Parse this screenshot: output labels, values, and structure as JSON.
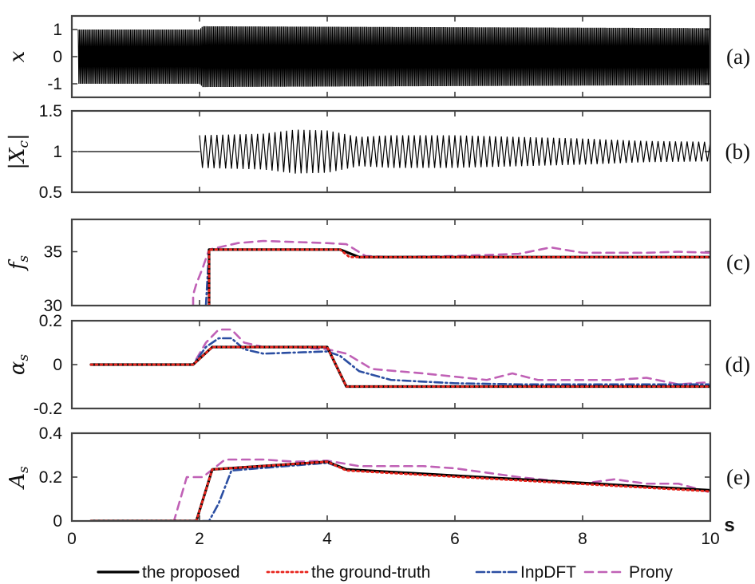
{
  "chart_data": {
    "type": "line",
    "x_unit_label": "s",
    "xlim": [
      0,
      10
    ],
    "x_ticks": [
      "0",
      "2",
      "4",
      "6",
      "8",
      "10"
    ],
    "legend": {
      "placement": "bottom",
      "entries": [
        {
          "name": "the proposed",
          "color": "#000000",
          "style": "solid"
        },
        {
          "name": "the ground-truth",
          "color": "#e8241c",
          "style": "dotted"
        },
        {
          "name": "InpDFT",
          "color": "#2b4ea2",
          "style": "dashdot"
        },
        {
          "name": "Prony",
          "color": "#c061b6",
          "style": "dashed"
        }
      ]
    },
    "panels": [
      {
        "id": "a",
        "panel_label": "(a)",
        "ylabel": "x",
        "ylim": [
          -1.5,
          1.5
        ],
        "y_ticks": [
          1,
          0,
          -1
        ],
        "y_tick_labels": [
          "1",
          "0",
          "-1"
        ],
        "series": [
          {
            "name": "x",
            "type": "oscillation",
            "color": "#000000",
            "envelope": [
              [
                0.1,
                1.0
              ],
              [
                2.0,
                1.0
              ],
              [
                2.05,
                1.12
              ],
              [
                10.0,
                1.05
              ]
            ],
            "cycles_per_second": 50
          }
        ]
      },
      {
        "id": "b",
        "panel_label": "(b)",
        "ylabel": "|Xc|",
        "ylim": [
          0.5,
          1.5
        ],
        "y_ticks": [
          1.5,
          1,
          0.5
        ],
        "y_tick_labels": [
          "1.5",
          "1",
          "0.5"
        ],
        "series": [
          {
            "name": "|Xc|",
            "type": "line",
            "color": "#000000",
            "x": [
              0.1,
              2.0
            ],
            "y": [
              1.0,
              1.0
            ]
          },
          {
            "name": "|Xc| oscillation",
            "type": "oscillation",
            "color": "#000000",
            "center": 1.0,
            "start": 2.0,
            "end": 10.0,
            "cycles_per_second": 11,
            "envelope": [
              [
                2.0,
                0.2
              ],
              [
                3.0,
                0.22
              ],
              [
                3.5,
                0.27
              ],
              [
                4.0,
                0.26
              ],
              [
                4.5,
                0.18
              ],
              [
                5.0,
                0.2
              ],
              [
                6.0,
                0.2
              ],
              [
                7.0,
                0.18
              ],
              [
                8.0,
                0.16
              ],
              [
                9.0,
                0.13
              ],
              [
                10.0,
                0.12
              ]
            ]
          }
        ]
      },
      {
        "id": "c",
        "panel_label": "(c)",
        "ylabel": "fs",
        "ylim": [
          30,
          38
        ],
        "y_ticks": [
          35,
          30
        ],
        "y_tick_labels": [
          "35",
          "30"
        ],
        "series": [
          {
            "name": "the proposed",
            "x": [
              2.15,
              2.15,
              4.2,
              4.5,
              10.0
            ],
            "y": [
              30,
              35.2,
              35.2,
              34.5,
              34.5
            ]
          },
          {
            "name": "the ground-truth",
            "x": [
              2.15,
              2.15,
              4.2,
              4.35,
              10.0
            ],
            "y": [
              30,
              35.2,
              35.2,
              34.5,
              34.5
            ]
          },
          {
            "name": "InpDFT",
            "x": [
              2.1,
              2.15,
              4.2,
              4.5,
              10.0
            ],
            "y": [
              30,
              35.2,
              35.2,
              34.5,
              34.5
            ]
          },
          {
            "name": "Prony",
            "x": [
              1.9,
              1.9,
              1.95,
              2.05,
              2.15,
              2.6,
              3.0,
              3.5,
              4.0,
              4.3,
              4.6,
              5.0,
              6.0,
              7.0,
              7.5,
              8.0,
              9.0,
              9.5,
              10.0
            ],
            "y": [
              30,
              31.0,
              32.0,
              33.5,
              35.2,
              35.8,
              36.0,
              35.9,
              35.8,
              35.7,
              34.6,
              34.5,
              34.6,
              34.8,
              35.4,
              34.9,
              34.9,
              35.0,
              34.9
            ]
          }
        ]
      },
      {
        "id": "d",
        "panel_label": "(d)",
        "ylabel": "αs",
        "ylim": [
          -0.2,
          0.2
        ],
        "y_ticks": [
          0.2,
          0,
          -0.2
        ],
        "y_tick_labels": [
          "0.2",
          "0",
          "-0.2"
        ],
        "series": [
          {
            "name": "the proposed",
            "x": [
              0.3,
              1.9,
              2.2,
              4.0,
              4.3,
              10.0
            ],
            "y": [
              0,
              0,
              0.08,
              0.08,
              -0.1,
              -0.1
            ]
          },
          {
            "name": "the ground-truth",
            "x": [
              0.3,
              1.9,
              2.2,
              4.0,
              4.3,
              10.0
            ],
            "y": [
              0,
              0,
              0.08,
              0.08,
              -0.1,
              -0.1
            ]
          },
          {
            "name": "InpDFT",
            "x": [
              0.3,
              1.9,
              2.1,
              2.3,
              2.5,
              2.7,
              3.0,
              3.5,
              4.0,
              4.2,
              4.5,
              5.0,
              6.0,
              7.0,
              8.0,
              9.0,
              10.0
            ],
            "y": [
              0,
              0,
              0.08,
              0.12,
              0.12,
              0.07,
              0.05,
              0.055,
              0.06,
              0.04,
              -0.03,
              -0.07,
              -0.085,
              -0.09,
              -0.09,
              -0.09,
              -0.09
            ]
          },
          {
            "name": "Prony",
            "x": [
              0.3,
              1.9,
              2.1,
              2.3,
              2.5,
              2.7,
              3.0,
              3.5,
              4.0,
              4.3,
              4.7,
              5.5,
              6.5,
              6.9,
              7.3,
              7.8,
              8.5,
              9.0,
              9.5,
              10.0
            ],
            "y": [
              0,
              0,
              0.1,
              0.16,
              0.16,
              0.1,
              0.08,
              0.08,
              0.07,
              0.05,
              -0.02,
              -0.04,
              -0.07,
              -0.04,
              -0.07,
              -0.07,
              -0.07,
              -0.06,
              -0.09,
              -0.08
            ]
          }
        ]
      },
      {
        "id": "e",
        "panel_label": "(e)",
        "ylabel": "As",
        "ylim": [
          0,
          0.4
        ],
        "y_ticks": [
          0.4,
          0.2,
          0
        ],
        "y_tick_labels": [
          "0.4",
          "0.2",
          "0"
        ],
        "series": [
          {
            "name": "the proposed",
            "x": [
              0.3,
              1.95,
              2.2,
              4.0,
              4.3,
              10.0
            ],
            "y": [
              0,
              0,
              0.235,
              0.27,
              0.235,
              0.14
            ]
          },
          {
            "name": "the ground-truth",
            "x": [
              0.3,
              1.95,
              2.2,
              4.0,
              4.3,
              10.0
            ],
            "y": [
              0,
              0,
              0.235,
              0.27,
              0.23,
              0.135
            ]
          },
          {
            "name": "InpDFT",
            "x": [
              0.3,
              2.15,
              2.3,
              2.5,
              4.0,
              4.3,
              10.0
            ],
            "y": [
              0,
              0,
              0.08,
              0.23,
              0.265,
              0.235,
              0.14
            ]
          },
          {
            "name": "Prony",
            "x": [
              0.3,
              1.6,
              1.8,
              2.05,
              2.4,
              3.0,
              3.5,
              4.0,
              4.5,
              5.5,
              6.0,
              7.0,
              8.0,
              8.5,
              9.0,
              9.5,
              10.0
            ],
            "y": [
              0,
              0,
              0.2,
              0.2,
              0.28,
              0.28,
              0.27,
              0.275,
              0.25,
              0.25,
              0.24,
              0.2,
              0.17,
              0.19,
              0.17,
              0.17,
              0.13
            ]
          }
        ]
      }
    ]
  }
}
